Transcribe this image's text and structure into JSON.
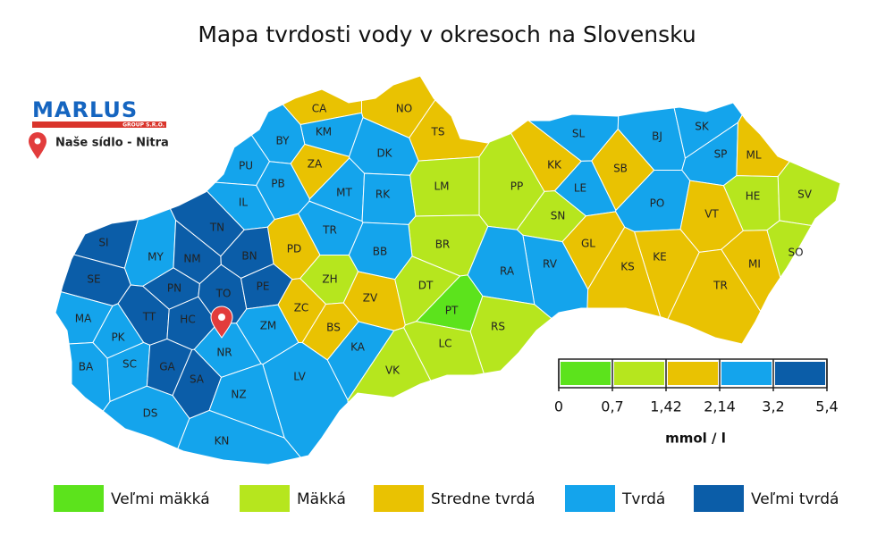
{
  "title": "Mapa tvrdosti vody v okresoch na Slovensku",
  "logo": {
    "name": "MARLUS",
    "sub": "GROUP S.R.O."
  },
  "seat": "Naše sídlo - Nitra",
  "scale": {
    "ticks": [
      0,
      {
        "value": 0.7,
        "label": "0,7"
      },
      {
        "value": 1.42,
        "label": "1,42"
      },
      {
        "value": 2.14,
        "label": "2,14"
      },
      {
        "value": 3.2,
        "label": "3,2"
      },
      {
        "value": 5.4,
        "label": "5,4"
      }
    ],
    "unit": "mmol / l"
  },
  "legend": [
    {
      "label": "Veľmi mäkká",
      "color": "#5ce31c"
    },
    {
      "label": "Mäkká",
      "color": "#b6e61e"
    },
    {
      "label": "Stredne tvrdá",
      "color": "#e9c202"
    },
    {
      "label": "Tvrdá",
      "color": "#14a4ec"
    },
    {
      "label": "Veľmi tvrdá",
      "color": "#0b5da8"
    }
  ],
  "districts": [
    {
      "code": "CA",
      "color": "#e9c202"
    },
    {
      "code": "NO",
      "color": "#e9c202"
    },
    {
      "code": "TS",
      "color": "#e9c202"
    },
    {
      "code": "KM",
      "color": "#14a4ec"
    },
    {
      "code": "BY",
      "color": "#14a4ec"
    },
    {
      "code": "ZA",
      "color": "#e9c202"
    },
    {
      "code": "DK",
      "color": "#14a4ec"
    },
    {
      "code": "PU",
      "color": "#14a4ec"
    },
    {
      "code": "PB",
      "color": "#14a4ec"
    },
    {
      "code": "MT",
      "color": "#14a4ec"
    },
    {
      "code": "RK",
      "color": "#14a4ec"
    },
    {
      "code": "LM",
      "color": "#b6e61e"
    },
    {
      "code": "PP",
      "color": "#b6e61e"
    },
    {
      "code": "KK",
      "color": "#e9c202"
    },
    {
      "code": "SL",
      "color": "#14a4ec"
    },
    {
      "code": "BJ",
      "color": "#14a4ec"
    },
    {
      "code": "SK",
      "color": "#14a4ec"
    },
    {
      "code": "SP",
      "color": "#14a4ec"
    },
    {
      "code": "ML",
      "color": "#e9c202"
    },
    {
      "code": "SB",
      "color": "#e9c202"
    },
    {
      "code": "LE",
      "color": "#14a4ec"
    },
    {
      "code": "HE",
      "color": "#b6e61e"
    },
    {
      "code": "SV",
      "color": "#b6e61e"
    },
    {
      "code": "PO",
      "color": "#14a4ec"
    },
    {
      "code": "VT",
      "color": "#e9c202"
    },
    {
      "code": "SN",
      "color": "#b6e61e"
    },
    {
      "code": "IL",
      "color": "#14a4ec"
    },
    {
      "code": "TN",
      "color": "#0b5da8"
    },
    {
      "code": "TR",
      "color": "#14a4ec"
    },
    {
      "code": "PD",
      "color": "#e9c202"
    },
    {
      "code": "BR",
      "color": "#b6e61e"
    },
    {
      "code": "GL",
      "color": "#e9c202"
    },
    {
      "code": "MI",
      "color": "#e9c202"
    },
    {
      "code": "SO",
      "color": "#b6e61e"
    },
    {
      "code": "KE",
      "color": "#e9c202"
    },
    {
      "code": "KS",
      "color": "#e9c202"
    },
    {
      "code": "RV",
      "color": "#14a4ec"
    },
    {
      "code": "RA",
      "color": "#14a4ec"
    },
    {
      "code": "BB",
      "color": "#14a4ec"
    },
    {
      "code": "SI",
      "color": "#0b5da8"
    },
    {
      "code": "MY",
      "color": "#14a4ec"
    },
    {
      "code": "NM",
      "color": "#0b5da8"
    },
    {
      "code": "BN",
      "color": "#0b5da8"
    },
    {
      "code": "SE",
      "color": "#0b5da8"
    },
    {
      "code": "PN",
      "color": "#0b5da8"
    },
    {
      "code": "TO",
      "color": "#0b5da8"
    },
    {
      "code": "PE",
      "color": "#0b5da8"
    },
    {
      "code": "ZH",
      "color": "#b6e61e"
    },
    {
      "code": "ZV",
      "color": "#e9c202"
    },
    {
      "code": "DT",
      "color": "#b6e61e"
    },
    {
      "code": "TR",
      "color": "#e9c202"
    },
    {
      "code": "ZC",
      "color": "#e9c202"
    },
    {
      "code": "PT",
      "color": "#5ce31c"
    },
    {
      "code": "RS",
      "color": "#b6e61e"
    },
    {
      "code": "MA",
      "color": "#14a4ec"
    },
    {
      "code": "TT",
      "color": "#0b5da8"
    },
    {
      "code": "HC",
      "color": "#0b5da8"
    },
    {
      "code": "ZM",
      "color": "#14a4ec"
    },
    {
      "code": "BS",
      "color": "#e9c202"
    },
    {
      "code": "PK",
      "color": "#14a4ec"
    },
    {
      "code": "LC",
      "color": "#b6e61e"
    },
    {
      "code": "KA",
      "color": "#14a4ec"
    },
    {
      "code": "NR",
      "color": "#14a4ec"
    },
    {
      "code": "SC",
      "color": "#14a4ec"
    },
    {
      "code": "BA",
      "color": "#14a4ec"
    },
    {
      "code": "GA",
      "color": "#0b5da8"
    },
    {
      "code": "SA",
      "color": "#0b5da8"
    },
    {
      "code": "VK",
      "color": "#b6e61e"
    },
    {
      "code": "LV",
      "color": "#14a4ec"
    },
    {
      "code": "NZ",
      "color": "#14a4ec"
    },
    {
      "code": "DS",
      "color": "#14a4ec"
    },
    {
      "code": "KN",
      "color": "#14a4ec"
    }
  ]
}
